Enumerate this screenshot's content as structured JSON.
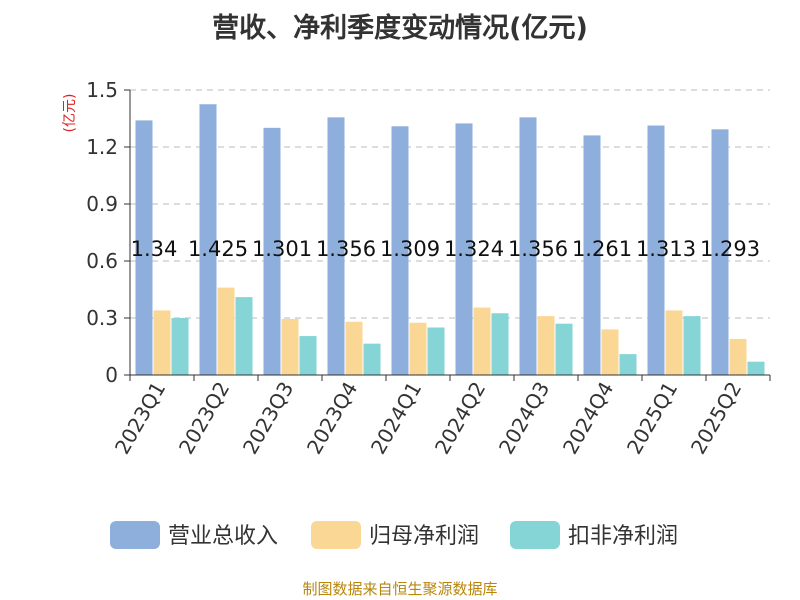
{
  "title": "营收、净利季度变动情况(亿元)",
  "source": "制图数据来自恒生聚源数据库",
  "chart_data": {
    "type": "bar",
    "title": "营收、净利季度变动情况(亿元)",
    "ylabel": "(亿元)",
    "xlabel": "",
    "ylim": [
      0,
      1.5
    ],
    "yticks": [
      "0",
      "0.3",
      "0.6",
      "0.9",
      "1.2",
      "1.5"
    ],
    "grid": true,
    "legend_position": "bottom",
    "categories": [
      "2023Q1",
      "2023Q2",
      "2023Q3",
      "2023Q4",
      "2024Q1",
      "2024Q2",
      "2024Q3",
      "2024Q4",
      "2025Q1",
      "2025Q2"
    ],
    "series": [
      {
        "name": "营业总收入",
        "color": "#8eaedb",
        "values": [
          1.34,
          1.425,
          1.301,
          1.356,
          1.309,
          1.324,
          1.356,
          1.261,
          1.313,
          1.293
        ],
        "labels": [
          "1.34",
          "1.425",
          "1.301",
          "1.356",
          "1.309",
          "1.324",
          "1.356",
          "1.261",
          "1.313",
          "1.293"
        ]
      },
      {
        "name": "归母净利润",
        "color": "#fbd795",
        "values": [
          0.34,
          0.46,
          0.295,
          0.28,
          0.275,
          0.355,
          0.31,
          0.24,
          0.34,
          0.19
        ]
      },
      {
        "name": "扣非净利润",
        "color": "#86d5d6",
        "values": [
          0.3,
          0.41,
          0.205,
          0.165,
          0.25,
          0.325,
          0.27,
          0.11,
          0.31,
          0.07
        ]
      }
    ]
  }
}
